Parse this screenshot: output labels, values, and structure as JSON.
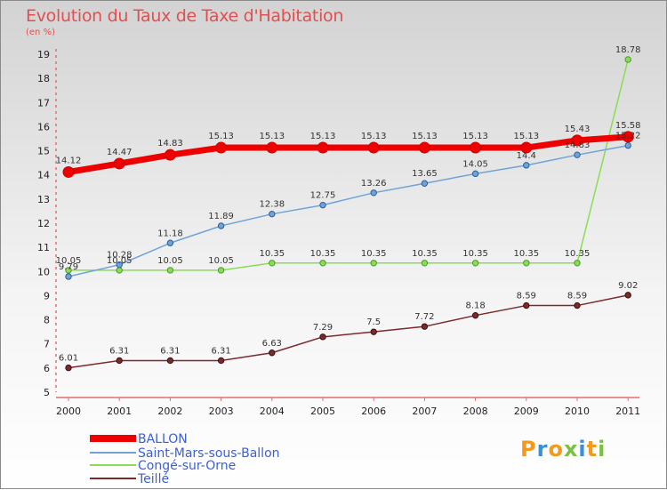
{
  "title": "Evolution du Taux de Taxe d'Habitation",
  "subtitle": "(en %)",
  "logo_text": "Proxiti",
  "colors": {
    "ballon": "#ee0000",
    "saint_mars": "#6fa3d8",
    "conge": "#88dd55",
    "teille": "#7a2a2a"
  },
  "chart_data": {
    "type": "line",
    "title": "Evolution du Taux de Taxe d'Habitation",
    "subtitle": "(en %)",
    "x": [
      "2000",
      "2001",
      "2002",
      "2003",
      "2004",
      "2005",
      "2006",
      "2007",
      "2008",
      "2009",
      "2010",
      "2011"
    ],
    "ylim": [
      5,
      19
    ],
    "yticks": [
      "5",
      "6",
      "7",
      "8",
      "9",
      "10",
      "11",
      "12",
      "13",
      "14",
      "15",
      "16",
      "17",
      "18",
      "19"
    ],
    "grid": false,
    "legend_position": "bottom-left",
    "series": [
      {
        "name": "BALLON",
        "values": [
          14.12,
          14.47,
          14.83,
          15.13,
          15.13,
          15.13,
          15.13,
          15.13,
          15.13,
          15.13,
          15.43,
          15.58
        ],
        "labels": [
          "14.12",
          "14.47",
          "14.83",
          "15.13",
          "15.13",
          "15.13",
          "15.13",
          "15.13",
          "15.13",
          "15.13",
          "15.43",
          "15.58"
        ]
      },
      {
        "name": "Saint-Mars-sous-Ballon",
        "values": [
          9.79,
          10.28,
          11.18,
          11.89,
          12.38,
          12.75,
          13.26,
          13.65,
          14.05,
          14.4,
          14.83,
          15.22
        ],
        "labels": [
          "9.79",
          "10.28",
          "11.18",
          "11.89",
          "12.38",
          "12.75",
          "13.26",
          "13.65",
          "14.05",
          "14.4",
          "14.83",
          "15.22"
        ]
      },
      {
        "name": "Congé-sur-Orne",
        "values": [
          10.05,
          10.05,
          10.05,
          10.05,
          10.35,
          10.35,
          10.35,
          10.35,
          10.35,
          10.35,
          10.35,
          18.78
        ],
        "labels": [
          "10.05",
          "10.05",
          "10.05",
          "10.05",
          "10.35",
          "10.35",
          "10.35",
          "10.35",
          "10.35",
          "10.35",
          "10.35",
          "18.78"
        ]
      },
      {
        "name": "Teillé",
        "values": [
          6.01,
          6.31,
          6.31,
          6.31,
          6.63,
          7.29,
          7.5,
          7.72,
          8.18,
          8.59,
          8.59,
          9.02
        ],
        "labels": [
          "6.01",
          "6.31",
          "6.31",
          "6.31",
          "6.63",
          "7.29",
          "7.5",
          "7.72",
          "8.18",
          "8.59",
          "8.59",
          "9.02"
        ]
      }
    ]
  }
}
